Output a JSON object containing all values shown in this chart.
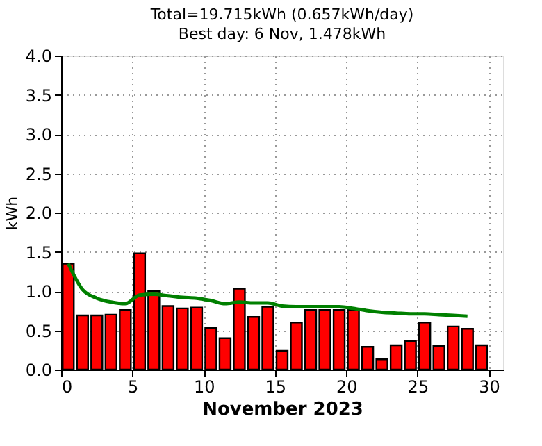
{
  "chart_data": {
    "type": "bar",
    "title": "Total=19.715kWh (0.657kWh/day)",
    "subtitle": "Best day: 6 Nov, 1.478kWh",
    "xlabel": "November 2023",
    "ylabel": "kWh",
    "x": [
      0.5,
      1.5,
      2.5,
      3.5,
      4.5,
      5.5,
      6.5,
      7.5,
      8.5,
      9.5,
      10.5,
      11.5,
      12.5,
      13.5,
      14.5,
      15.5,
      16.5,
      17.5,
      18.5,
      19.5,
      20.5,
      21.5,
      22.5,
      23.5,
      24.5,
      25.5,
      26.5,
      27.5,
      28.5,
      29.5
    ],
    "series": [
      {
        "color": "#ff0000",
        "values": [
          1.35,
          0.69,
          0.69,
          0.7,
          0.76,
          1.48,
          1.0,
          0.81,
          0.78,
          0.79,
          0.53,
          0.4,
          1.03,
          0.67,
          0.8,
          0.24,
          0.6,
          0.76,
          0.76,
          0.76,
          0.76,
          0.29,
          0.13,
          0.31,
          0.36,
          0.6,
          0.3,
          0.55,
          0.52,
          0.31
        ]
      },
      {
        "type": "line",
        "color": "#008000",
        "x": [
          0.5,
          1.5,
          2.5,
          3.5,
          4.5,
          5.5,
          6.5,
          7.5,
          8.5,
          9.5,
          10.5,
          11.5,
          12.5,
          13.5,
          14.5,
          15.5,
          16.5,
          17.5,
          18.5,
          19.5,
          20.5,
          21.5,
          22.5,
          23.5,
          24.5,
          25.5,
          26.5,
          27.5,
          28.5
        ],
        "values": [
          1.35,
          1.02,
          0.91,
          0.86,
          0.84,
          0.95,
          0.96,
          0.94,
          0.92,
          0.91,
          0.88,
          0.84,
          0.86,
          0.85,
          0.85,
          0.81,
          0.8,
          0.8,
          0.8,
          0.8,
          0.78,
          0.75,
          0.73,
          0.72,
          0.71,
          0.71,
          0.7,
          0.69,
          0.68
        ]
      }
    ],
    "xlim": [
      0,
      31
    ],
    "xticks": [
      0,
      5,
      10,
      15,
      20,
      25,
      30
    ],
    "ylim": [
      0,
      4
    ],
    "yticks": [
      {
        "value": 0,
        "label": "0.0"
      },
      {
        "value": 0.5,
        "label": "0.5"
      },
      {
        "value": 1,
        "label": "1.0"
      },
      {
        "value": 1.5,
        "label": "1.5"
      },
      {
        "value": 2,
        "label": "2.0"
      },
      {
        "value": 2.5,
        "label": "2.5"
      },
      {
        "value": 3,
        "label": "3.0"
      },
      {
        "value": 3.5,
        "label": "3.5"
      },
      {
        "value": 4,
        "label": "4.0"
      }
    ],
    "grid": true,
    "marker": "none",
    "line_style": "solid"
  }
}
